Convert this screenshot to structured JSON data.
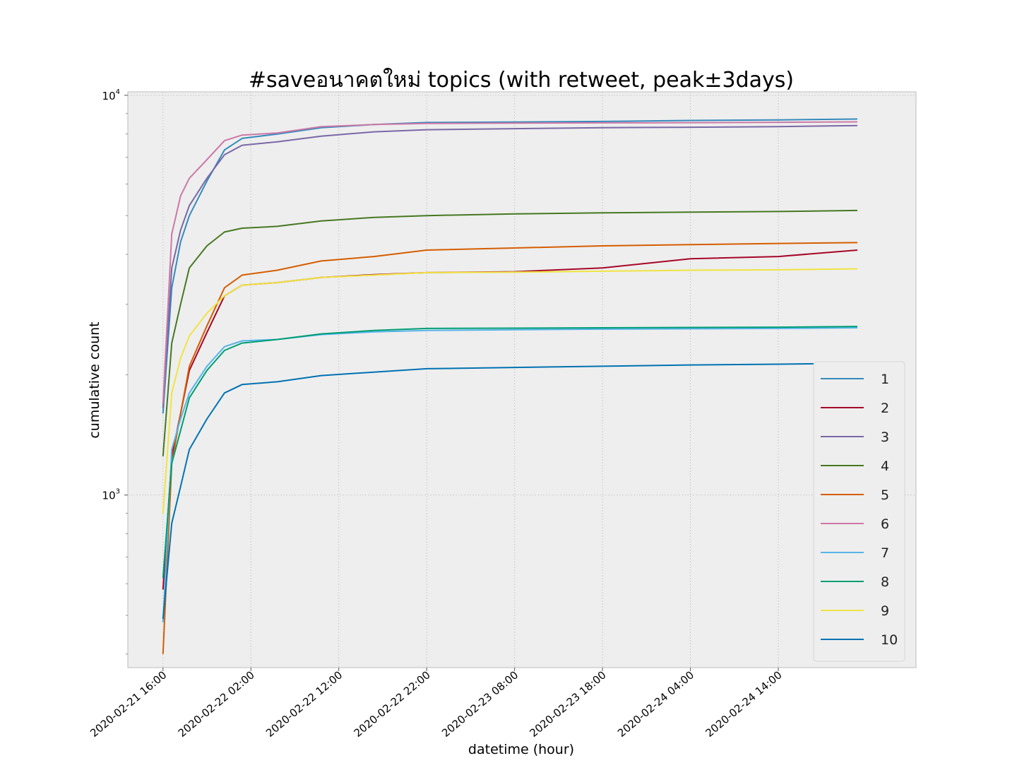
{
  "chart_data": {
    "type": "line",
    "title": "#saveอนาคตใหม่ topics (with retweet, peak±3days)",
    "xlabel": "datetime (hour)",
    "ylabel": "cumulative count",
    "y_scale": "log",
    "ylim": [
      370,
      10200
    ],
    "xlim": [
      "2020-02-21 12:00",
      "2020-02-25 05:40"
    ],
    "grid": true,
    "legend_position": "lower right",
    "x_ticks": [
      "2020-02-21 16:00",
      "2020-02-22 02:00",
      "2020-02-22 12:00",
      "2020-02-22 22:00",
      "2020-02-23 08:00",
      "2020-02-23 18:00",
      "2020-02-24 04:00",
      "2020-02-24 14:00"
    ],
    "y_ticks": [
      {
        "value": 1000,
        "base": "10",
        "exp": "3"
      },
      {
        "value": 10000,
        "base": "10",
        "exp": "4"
      }
    ],
    "x": [
      "2020-02-21 16:00",
      "2020-02-21 17:00",
      "2020-02-21 18:00",
      "2020-02-21 19:00",
      "2020-02-21 21:00",
      "2020-02-21 23:00",
      "2020-02-22 01:00",
      "2020-02-22 05:00",
      "2020-02-22 10:00",
      "2020-02-22 16:00",
      "2020-02-22 22:00",
      "2020-02-23 08:00",
      "2020-02-23 18:00",
      "2020-02-24 04:00",
      "2020-02-24 14:00",
      "2020-02-24 23:00"
    ],
    "series": [
      {
        "name": "1",
        "color": "#348ABD",
        "values": [
          1600,
          3300,
          4300,
          5000,
          6100,
          7300,
          7800,
          8000,
          8300,
          8450,
          8550,
          8570,
          8600,
          8650,
          8680,
          8720
        ]
      },
      {
        "name": "2",
        "color": "#A60628",
        "values": [
          580,
          1250,
          1600,
          2050,
          2550,
          3150,
          3350,
          3400,
          3500,
          3560,
          3600,
          3620,
          3700,
          3900,
          3950,
          4100
        ]
      },
      {
        "name": "3",
        "color": "#7A68A6",
        "values": [
          1650,
          3700,
          4600,
          5300,
          6200,
          7100,
          7500,
          7650,
          7900,
          8100,
          8200,
          8250,
          8300,
          8320,
          8350,
          8400
        ]
      },
      {
        "name": "4",
        "color": "#467821",
        "values": [
          1250,
          2400,
          3000,
          3700,
          4200,
          4550,
          4650,
          4700,
          4850,
          4950,
          5000,
          5050,
          5080,
          5100,
          5120,
          5150
        ]
      },
      {
        "name": "5",
        "color": "#D55E00",
        "values": [
          400,
          1200,
          1600,
          2100,
          2650,
          3300,
          3550,
          3650,
          3850,
          3950,
          4100,
          4150,
          4200,
          4230,
          4260,
          4280
        ]
      },
      {
        "name": "6",
        "color": "#CC79A7",
        "values": [
          1700,
          4500,
          5600,
          6200,
          6900,
          7700,
          7950,
          8050,
          8350,
          8450,
          8500,
          8520,
          8530,
          8540,
          8560,
          8580
        ]
      },
      {
        "name": "7",
        "color": "#56B4E9",
        "values": [
          480,
          1300,
          1550,
          1800,
          2100,
          2350,
          2430,
          2450,
          2520,
          2560,
          2580,
          2590,
          2600,
          2605,
          2610,
          2620
        ]
      },
      {
        "name": "8",
        "color": "#009E73",
        "values": [
          620,
          1200,
          1450,
          1750,
          2050,
          2300,
          2400,
          2450,
          2530,
          2580,
          2610,
          2615,
          2620,
          2625,
          2630,
          2640
        ]
      },
      {
        "name": "9",
        "color": "#F0E442",
        "values": [
          900,
          1800,
          2200,
          2500,
          2850,
          3150,
          3350,
          3400,
          3500,
          3550,
          3600,
          3610,
          3630,
          3650,
          3660,
          3680
        ]
      },
      {
        "name": "10",
        "color": "#0072B2",
        "values": [
          490,
          850,
          1050,
          1300,
          1550,
          1800,
          1890,
          1920,
          1990,
          2030,
          2070,
          2085,
          2100,
          2115,
          2125,
          2135
        ]
      }
    ]
  }
}
